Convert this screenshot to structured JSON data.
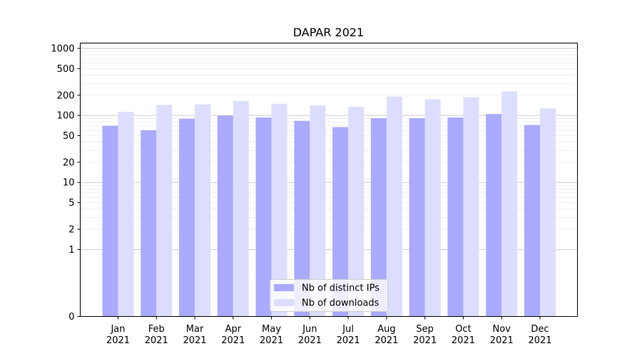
{
  "chart_data": {
    "type": "bar",
    "title": "DAPAR 2021",
    "xlabel": "",
    "ylabel": "",
    "yscale": "symlog",
    "ylim": [
      0,
      1200
    ],
    "y_ticks": [
      {
        "value": 0,
        "label": "0"
      },
      {
        "value": 1,
        "label": "1"
      },
      {
        "value": 2,
        "label": "2"
      },
      {
        "value": 5,
        "label": "5"
      },
      {
        "value": 10,
        "label": "10"
      },
      {
        "value": 20,
        "label": "20"
      },
      {
        "value": 50,
        "label": "50"
      },
      {
        "value": 100,
        "label": "100"
      },
      {
        "value": 200,
        "label": "200"
      },
      {
        "value": 500,
        "label": "500"
      },
      {
        "value": 1000,
        "label": "1000"
      }
    ],
    "categories": [
      {
        "month": "Jan",
        "year": "2021"
      },
      {
        "month": "Feb",
        "year": "2021"
      },
      {
        "month": "Mar",
        "year": "2021"
      },
      {
        "month": "Apr",
        "year": "2021"
      },
      {
        "month": "May",
        "year": "2021"
      },
      {
        "month": "Jun",
        "year": "2021"
      },
      {
        "month": "Jul",
        "year": "2021"
      },
      {
        "month": "Aug",
        "year": "2021"
      },
      {
        "month": "Sep",
        "year": "2021"
      },
      {
        "month": "Oct",
        "year": "2021"
      },
      {
        "month": "Nov",
        "year": "2021"
      },
      {
        "month": "Dec",
        "year": "2021"
      }
    ],
    "series": [
      {
        "name": "Nb of distinct IPs",
        "color": "#aaaaff",
        "values": [
          70,
          60,
          89,
          99,
          93,
          83,
          67,
          91,
          91,
          93,
          105,
          72
        ]
      },
      {
        "name": "Nb of downloads",
        "color": "#ddddff",
        "values": [
          113,
          143,
          146,
          163,
          149,
          141,
          134,
          191,
          173,
          187,
          229,
          127
        ]
      }
    ],
    "grid": true,
    "legend_position": "bottom-center"
  }
}
